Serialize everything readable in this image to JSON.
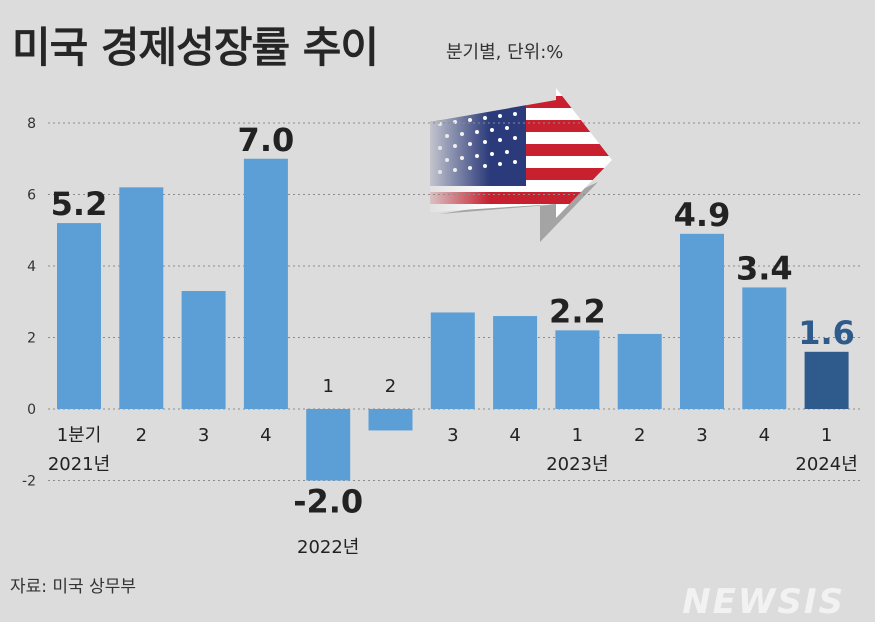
{
  "header": {
    "title": "미국 경제성장률 추이",
    "unit": "분기별, 단위:%"
  },
  "footer": {
    "source": "자료: 미국 상무부",
    "watermark": "NEWSIS"
  },
  "colors": {
    "bar": "#5b9fd6",
    "bar_highlight": "#2f5b8c",
    "highlight_label": "#2f5b8c",
    "grid": "#8c8c8c"
  },
  "chart_data": {
    "type": "bar",
    "title": "미국 경제성장률 추이",
    "ylim": [
      -2,
      8
    ],
    "yticks": [
      "8",
      "6",
      "4",
      "2",
      "0",
      "-2"
    ],
    "grid": true,
    "categories": [
      "1분기",
      "2",
      "3",
      "4",
      "1",
      "2",
      "3",
      "4",
      "1",
      "2",
      "3",
      "4",
      "1"
    ],
    "values": [
      5.2,
      6.2,
      3.3,
      7.0,
      -2.0,
      -0.6,
      2.7,
      2.6,
      2.2,
      2.1,
      4.9,
      3.4,
      1.6
    ],
    "data_labels": [
      "5.2",
      "",
      "",
      "7.0",
      "-2.0",
      "",
      "",
      "",
      "2.2",
      "",
      "4.9",
      "3.4",
      "1.6"
    ],
    "year_labels": [
      {
        "text": "2021년",
        "index": 0
      },
      {
        "text": "2022년",
        "index": 4
      },
      {
        "text": "2023년",
        "index": 8
      },
      {
        "text": "2024년",
        "index": 12
      }
    ],
    "highlight_index": 12
  }
}
